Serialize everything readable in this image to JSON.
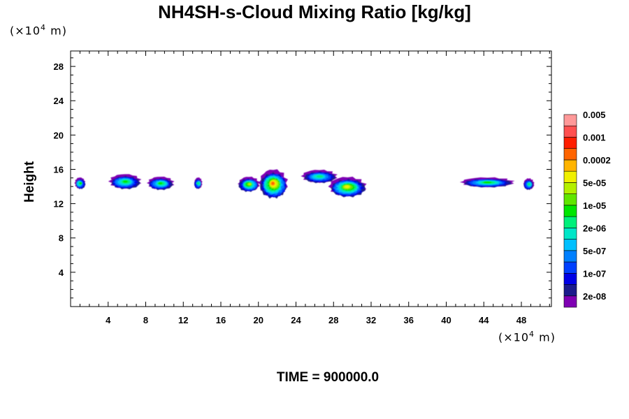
{
  "colors": {
    "frame": "#000000",
    "background": "#ffffff"
  },
  "chart_data": {
    "type": "heatmap",
    "title": "NH4SH-s-Cloud Mixing Ratio [kg/kg]",
    "ylabel": "Height",
    "xlabel": "",
    "y_unit": "(×10⁴ m)",
    "x_unit": "(×10⁴ m)",
    "footer": "TIME = 900000.0",
    "xlim": [
      0,
      51.2
    ],
    "ylim": [
      0,
      29.8
    ],
    "x_ticks": [
      4,
      8,
      12,
      16,
      20,
      24,
      28,
      32,
      36,
      40,
      44,
      48
    ],
    "x_tick_labels": [
      "4",
      "8",
      "12",
      "16",
      "20",
      "24",
      "28",
      "32",
      "36",
      "40",
      "44",
      "48"
    ],
    "y_ticks": [
      4,
      8,
      12,
      16,
      20,
      24,
      28
    ],
    "y_tick_labels": [
      "4",
      "8",
      "12",
      "16",
      "20",
      "24",
      "28"
    ],
    "colorbar": {
      "colors": [
        "#7f00b3",
        "#1c1c8c",
        "#0000e6",
        "#0040ff",
        "#0080ff",
        "#00c0ff",
        "#00e6c8",
        "#00f07a",
        "#00e600",
        "#60e600",
        "#b4f000",
        "#f0f000",
        "#ffb400",
        "#ff6400",
        "#ff1e00",
        "#ff5050",
        "#ff9999"
      ],
      "tick_labels": [
        "2e-08",
        "1e-07",
        "5e-07",
        "2e-06",
        "1e-05",
        "5e-05",
        "0.0002",
        "0.001",
        "0.005"
      ]
    },
    "cloud_features": [
      {
        "x_center": 1.0,
        "y_center": 14.4,
        "width": 1.2,
        "height": 1.4,
        "max_level": 9
      },
      {
        "x_center": 5.8,
        "y_center": 14.6,
        "width": 3.6,
        "height": 1.8,
        "max_level": 9
      },
      {
        "x_center": 9.6,
        "y_center": 14.4,
        "width": 3.0,
        "height": 1.6,
        "max_level": 9
      },
      {
        "x_center": 13.6,
        "y_center": 14.4,
        "width": 0.9,
        "height": 1.4,
        "max_level": 8
      },
      {
        "x_center": 19.0,
        "y_center": 14.3,
        "width": 2.4,
        "height": 1.8,
        "max_level": 11
      },
      {
        "x_center": 21.6,
        "y_center": 14.4,
        "width": 3.2,
        "height": 3.4,
        "max_level": 14
      },
      {
        "x_center": 26.5,
        "y_center": 15.2,
        "width": 4.0,
        "height": 1.6,
        "max_level": 8
      },
      {
        "x_center": 29.5,
        "y_center": 14.0,
        "width": 4.2,
        "height": 2.4,
        "max_level": 12
      },
      {
        "x_center": 44.4,
        "y_center": 14.5,
        "width": 6.0,
        "height": 1.2,
        "max_level": 9
      },
      {
        "x_center": 48.8,
        "y_center": 14.3,
        "width": 1.2,
        "height": 1.4,
        "max_level": 8
      }
    ]
  }
}
